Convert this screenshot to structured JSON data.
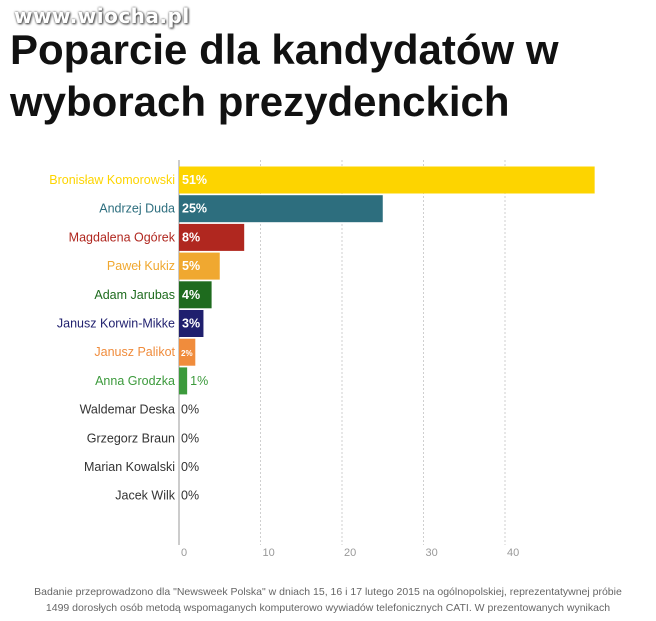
{
  "watermark": "www.wiocha.pl",
  "title_line1": "Poparcie dla kandydatów w",
  "title_line2": "wyborach prezydenckich",
  "chart_data": {
    "type": "bar",
    "orientation": "horizontal",
    "title": "Poparcie dla kandydatów w wyborach prezydenckich",
    "categories": [
      "Bronisław Komorowski",
      "Andrzej Duda",
      "Magdalena Ogórek",
      "Paweł Kukiz",
      "Adam Jarubas",
      "Janusz Korwin-Mikke",
      "Janusz Palikot",
      "Anna Grodzka",
      "Waldemar Deska",
      "Grzegorz Braun",
      "Marian Kowalski",
      "Jacek Wilk"
    ],
    "values": [
      51,
      25,
      8,
      5,
      4,
      3,
      2,
      1,
      0,
      0,
      0,
      0
    ],
    "labels": [
      "51%",
      "25%",
      "8%",
      "5%",
      "4%",
      "3%",
      "2%",
      "1%",
      "0%",
      "0%",
      "0%",
      "0%"
    ],
    "colors": [
      "#FDD400",
      "#2D6E7E",
      "#B0271F",
      "#F0A830",
      "#1E6B1E",
      "#1F1F6E",
      "#F08C3C",
      "#3C9A3C",
      "#333333",
      "#333333",
      "#333333",
      "#333333"
    ],
    "xticks": [
      0,
      10,
      20,
      30,
      40
    ],
    "xlim": [
      0,
      51
    ],
    "grid": true,
    "xlabel": "",
    "ylabel": ""
  },
  "footnote_line1": "Badanie przeprowadzono dla \"Newsweek Polska\" w dniach 15, 16 i 17 lutego 2015 na ogólnopolskiej, reprezentatywnej próbie",
  "footnote_line2": "1499 dorosłych osób metodą wspomaganych komputerowo wywiadów telefonicznych CATI. W prezentowanych wynikach"
}
